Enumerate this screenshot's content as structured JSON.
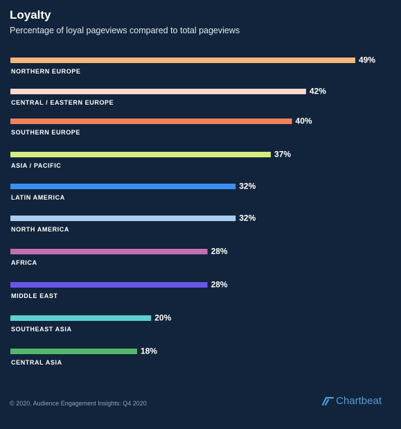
{
  "header": {
    "title": "Loyalty",
    "subtitle": "Percentage of loyal pageviews compared to total pageviews"
  },
  "chart_data": {
    "type": "bar",
    "orientation": "horizontal",
    "categories": [
      "NORTHERN EUROPE",
      "CENTRAL / EASTERN EUROPE",
      "SOUTHERN EUROPE",
      "ASIA / PACIFIC",
      "LATIN AMERICA",
      "NORTH AMERICA",
      "AFRICA",
      "MIDDLE EAST",
      "SOUTHEAST ASIA",
      "CENTRAL ASIA"
    ],
    "values": [
      49,
      42,
      40,
      37,
      32,
      32,
      28,
      28,
      20,
      18
    ],
    "value_labels": [
      "49%",
      "42%",
      "40%",
      "37%",
      "32%",
      "32%",
      "28%",
      "28%",
      "20%",
      "18%"
    ],
    "colors": [
      "#f5b97a",
      "#fbd9cd",
      "#f2825c",
      "#d6ea7e",
      "#3b8ff0",
      "#a8cdf0",
      "#c46fb4",
      "#6657e8",
      "#5ecfd0",
      "#53b86a"
    ],
    "unit": "%",
    "xlim": [
      0,
      49
    ],
    "grid": false,
    "legend": "none"
  },
  "footer": {
    "copyright": "© 2020. Audience Engagement Insights: Q4 2020",
    "brand": "Chartbeat",
    "logo_icon": "chartbeat-logo-icon"
  }
}
